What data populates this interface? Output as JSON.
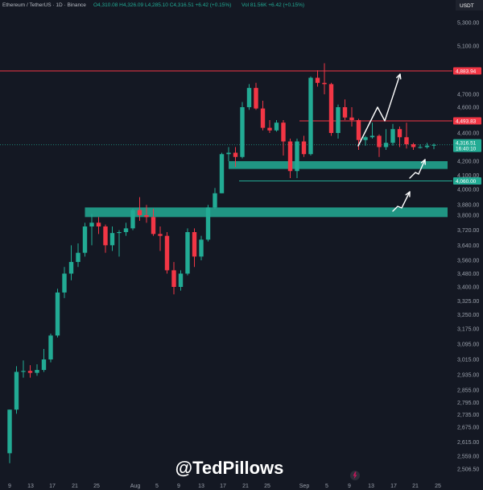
{
  "header": {
    "symbol": "Ethereum / TetherUS · 1D · Binance",
    "ohlc": "O4,310.08 H4,326.09 L4,285.10 C4,316.51 +6.42 (+0.15%)",
    "vol": "Vol 81.56K +6.42 (+0.15%)",
    "currency": "USDT"
  },
  "watermark": "@TedPillows",
  "chart_data": {
    "type": "candlestick",
    "y_axis": {
      "ticks": [
        "5,300.00",
        "5,100.00",
        "4,883.94",
        "4,700.00",
        "4,600.00",
        "4,493.83",
        "4,400.00",
        "4,316.51",
        "4,200.00",
        "4,100.00",
        "4,060.00",
        "4,000.00",
        "3,880.00",
        "3,800.00",
        "3,720.00",
        "3,640.00",
        "3,560.00",
        "3,480.00",
        "3,400.00",
        "3,325.00",
        "3,250.00",
        "3,175.00",
        "3,095.00",
        "3,015.00",
        "2,935.00",
        "2,855.00",
        "2,795.00",
        "2,735.00",
        "2,675.00",
        "2,615.00",
        "2,559.00",
        "2,506.50"
      ]
    },
    "x_axis": {
      "ticks": [
        "9",
        "13",
        "17",
        "21",
        "25",
        "Aug",
        "5",
        "9",
        "13",
        "17",
        "21",
        "25",
        "Sep",
        "5",
        "9",
        "13",
        "17",
        "21",
        "25"
      ]
    },
    "levels": [
      {
        "price": 4883.94,
        "label": "4,883.94",
        "color": "#f23645"
      },
      {
        "price": 4493.83,
        "label": "4,493.83",
        "color": "#f23645"
      },
      {
        "price": 4316.51,
        "label": "4,316.51",
        "label2": "16:40:10",
        "color": "#22ab94"
      },
      {
        "price": 4060.0,
        "label": "4,060.00",
        "color": "#22ab94"
      }
    ],
    "zones": [
      {
        "top": 4200,
        "bottom": 4145,
        "from": "2025-08-10",
        "to": "right-edge",
        "color": "#22ab94"
      },
      {
        "top": 3860,
        "bottom": 3790,
        "from": "2025-07-20",
        "to": "right-edge",
        "color": "#22ab94"
      }
    ],
    "candles": [
      {
        "d": "2025-07-09",
        "o": 2570,
        "h": 2760,
        "l": 2530,
        "c": 2760
      },
      {
        "d": "2025-07-10",
        "o": 2760,
        "h": 2980,
        "l": 2740,
        "c": 2950
      },
      {
        "d": "2025-07-11",
        "o": 2950,
        "h": 3010,
        "l": 2920,
        "c": 2955
      },
      {
        "d": "2025-07-12",
        "o": 2955,
        "h": 2985,
        "l": 2920,
        "c": 2945
      },
      {
        "d": "2025-07-13",
        "o": 2945,
        "h": 2990,
        "l": 2930,
        "c": 2960
      },
      {
        "d": "2025-07-14",
        "o": 2960,
        "h": 3070,
        "l": 2950,
        "c": 3015
      },
      {
        "d": "2025-07-15",
        "o": 3015,
        "h": 3150,
        "l": 3000,
        "c": 3140
      },
      {
        "d": "2025-07-16",
        "o": 3140,
        "h": 3390,
        "l": 3130,
        "c": 3370
      },
      {
        "d": "2025-07-17",
        "o": 3370,
        "h": 3520,
        "l": 3340,
        "c": 3480
      },
      {
        "d": "2025-07-18",
        "o": 3480,
        "h": 3640,
        "l": 3440,
        "c": 3550
      },
      {
        "d": "2025-07-19",
        "o": 3550,
        "h": 3650,
        "l": 3520,
        "c": 3600
      },
      {
        "d": "2025-07-20",
        "o": 3600,
        "h": 3760,
        "l": 3580,
        "c": 3740
      },
      {
        "d": "2025-07-21",
        "o": 3740,
        "h": 3810,
        "l": 3640,
        "c": 3760
      },
      {
        "d": "2025-07-22",
        "o": 3760,
        "h": 3790,
        "l": 3700,
        "c": 3740
      },
      {
        "d": "2025-07-23",
        "o": 3740,
        "h": 3750,
        "l": 3600,
        "c": 3640
      },
      {
        "d": "2025-07-24",
        "o": 3640,
        "h": 3740,
        "l": 3610,
        "c": 3705
      },
      {
        "d": "2025-07-25",
        "o": 3705,
        "h": 3720,
        "l": 3580,
        "c": 3710
      },
      {
        "d": "2025-07-26",
        "o": 3710,
        "h": 3760,
        "l": 3690,
        "c": 3730
      },
      {
        "d": "2025-07-27",
        "o": 3730,
        "h": 3850,
        "l": 3720,
        "c": 3840
      },
      {
        "d": "2025-07-28",
        "o": 3840,
        "h": 3940,
        "l": 3770,
        "c": 3800
      },
      {
        "d": "2025-07-29",
        "o": 3800,
        "h": 3880,
        "l": 3760,
        "c": 3790
      },
      {
        "d": "2025-07-30",
        "o": 3790,
        "h": 3850,
        "l": 3690,
        "c": 3700
      },
      {
        "d": "2025-07-31",
        "o": 3700,
        "h": 3740,
        "l": 3610,
        "c": 3690
      },
      {
        "d": "2025-08-01",
        "o": 3690,
        "h": 3710,
        "l": 3480,
        "c": 3500
      },
      {
        "d": "2025-08-02",
        "o": 3500,
        "h": 3550,
        "l": 3360,
        "c": 3400
      },
      {
        "d": "2025-08-03",
        "o": 3400,
        "h": 3500,
        "l": 3380,
        "c": 3480
      },
      {
        "d": "2025-08-04",
        "o": 3480,
        "h": 3730,
        "l": 3470,
        "c": 3710
      },
      {
        "d": "2025-08-05",
        "o": 3710,
        "h": 3730,
        "l": 3520,
        "c": 3580
      },
      {
        "d": "2025-08-06",
        "o": 3580,
        "h": 3690,
        "l": 3560,
        "c": 3670
      },
      {
        "d": "2025-08-07",
        "o": 3670,
        "h": 3880,
        "l": 3660,
        "c": 3860
      },
      {
        "d": "2025-08-08",
        "o": 3860,
        "h": 4010,
        "l": 3850,
        "c": 3970
      },
      {
        "d": "2025-08-09",
        "o": 3970,
        "h": 4260,
        "l": 3970,
        "c": 4250
      },
      {
        "d": "2025-08-10",
        "o": 4250,
        "h": 4300,
        "l": 4200,
        "c": 4260
      },
      {
        "d": "2025-08-11",
        "o": 4260,
        "h": 4300,
        "l": 4160,
        "c": 4230
      },
      {
        "d": "2025-08-12",
        "o": 4230,
        "h": 4640,
        "l": 4220,
        "c": 4600
      },
      {
        "d": "2025-08-13",
        "o": 4600,
        "h": 4780,
        "l": 4580,
        "c": 4750
      },
      {
        "d": "2025-08-14",
        "o": 4750,
        "h": 4790,
        "l": 4580,
        "c": 4590
      },
      {
        "d": "2025-08-15",
        "o": 4590,
        "h": 4650,
        "l": 4420,
        "c": 4440
      },
      {
        "d": "2025-08-16",
        "o": 4440,
        "h": 4500,
        "l": 4400,
        "c": 4420
      },
      {
        "d": "2025-08-17",
        "o": 4420,
        "h": 4500,
        "l": 4410,
        "c": 4480
      },
      {
        "d": "2025-08-18",
        "o": 4480,
        "h": 4500,
        "l": 4240,
        "c": 4340
      },
      {
        "d": "2025-08-19",
        "o": 4340,
        "h": 4360,
        "l": 4080,
        "c": 4130
      },
      {
        "d": "2025-08-20",
        "o": 4130,
        "h": 4360,
        "l": 4080,
        "c": 4340
      },
      {
        "d": "2025-08-21",
        "o": 4340,
        "h": 4380,
        "l": 4230,
        "c": 4250
      },
      {
        "d": "2025-08-22",
        "o": 4250,
        "h": 4840,
        "l": 4240,
        "c": 4830
      },
      {
        "d": "2025-08-23",
        "o": 4830,
        "h": 4890,
        "l": 4760,
        "c": 4790
      },
      {
        "d": "2025-08-24",
        "o": 4790,
        "h": 4950,
        "l": 4700,
        "c": 4780
      },
      {
        "d": "2025-08-25",
        "o": 4780,
        "h": 4790,
        "l": 4380,
        "c": 4400
      },
      {
        "d": "2025-08-26",
        "o": 4400,
        "h": 4620,
        "l": 4360,
        "c": 4600
      },
      {
        "d": "2025-08-27",
        "o": 4600,
        "h": 4660,
        "l": 4500,
        "c": 4520
      },
      {
        "d": "2025-08-28",
        "o": 4520,
        "h": 4600,
        "l": 4450,
        "c": 4500
      },
      {
        "d": "2025-08-29",
        "o": 4500,
        "h": 4510,
        "l": 4280,
        "c": 4350
      },
      {
        "d": "2025-08-30",
        "o": 4350,
        "h": 4380,
        "l": 4310,
        "c": 4370
      },
      {
        "d": "2025-08-31",
        "o": 4370,
        "h": 4480,
        "l": 4360,
        "c": 4380
      },
      {
        "d": "2025-09-01",
        "o": 4380,
        "h": 4390,
        "l": 4230,
        "c": 4300
      },
      {
        "d": "2025-09-02",
        "o": 4300,
        "h": 4430,
        "l": 4280,
        "c": 4330
      },
      {
        "d": "2025-09-03",
        "o": 4330,
        "h": 4470,
        "l": 4310,
        "c": 4430
      },
      {
        "d": "2025-09-04",
        "o": 4430,
        "h": 4450,
        "l": 4300,
        "c": 4370
      },
      {
        "d": "2025-09-05",
        "o": 4370,
        "h": 4480,
        "l": 4290,
        "c": 4320
      },
      {
        "d": "2025-09-06",
        "o": 4320,
        "h": 4330,
        "l": 4280,
        "c": 4300
      },
      {
        "d": "2025-09-07",
        "o": 4300,
        "h": 4320,
        "l": 4290,
        "c": 4300
      },
      {
        "d": "2025-09-08",
        "o": 4300,
        "h": 4330,
        "l": 4290,
        "c": 4310
      },
      {
        "d": "2025-09-09",
        "o": 4310,
        "h": 4326,
        "l": 4285,
        "c": 4316
      }
    ]
  }
}
